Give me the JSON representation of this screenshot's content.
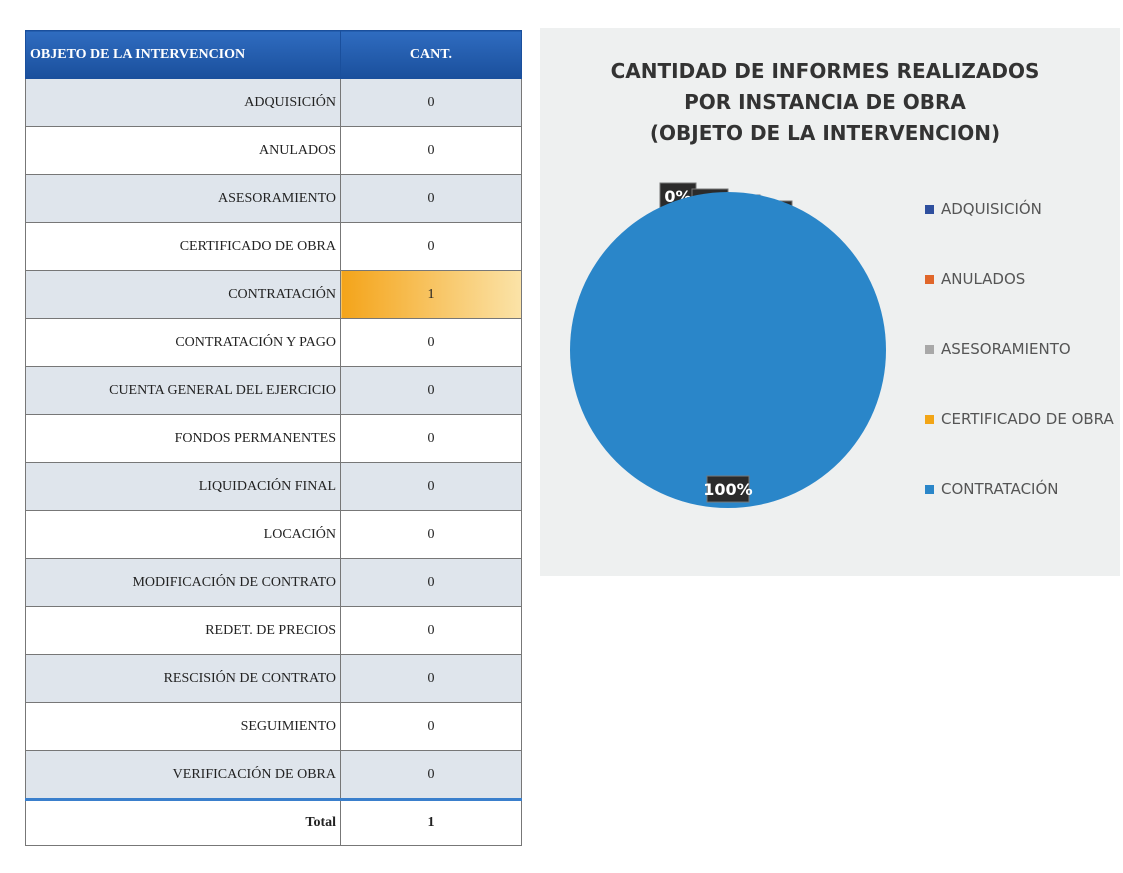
{
  "table": {
    "header": [
      "OBJETO DE LA INTERVENCION",
      "CANT."
    ],
    "rows": [
      [
        "ADQUISICIÓN",
        0
      ],
      [
        "ANULADOS",
        0
      ],
      [
        "ASESORAMIENTO",
        0
      ],
      [
        "CERTIFICADO DE OBRA",
        0
      ],
      [
        "CONTRATACIÓN",
        1
      ],
      [
        "CONTRATACIÓN Y PAGO",
        0
      ],
      [
        "CUENTA GENERAL DEL EJERCICIO",
        0
      ],
      [
        "FONDOS PERMANENTES",
        0
      ],
      [
        "LIQUIDACIÓN FINAL",
        0
      ],
      [
        "LOCACIÓN",
        0
      ],
      [
        "MODIFICACIÓN DE CONTRATO",
        0
      ],
      [
        "REDET. DE PRECIOS",
        0
      ],
      [
        "RESCISIÓN DE CONTRATO",
        0
      ],
      [
        "SEGUIMIENTO",
        0
      ],
      [
        "VERIFICACIÓN DE OBRA",
        0
      ]
    ],
    "total": [
      "Total",
      1
    ]
  },
  "chart_data": {
    "type": "pie",
    "title": [
      "CANTIDAD DE INFORMES REALIZADOS",
      "POR INSTANCIA DE OBRA",
      "(OBJETO DE LA INTERVENCION)"
    ],
    "categories": [
      "ADQUISICIÓN",
      "ANULADOS",
      "ASESORAMIENTO",
      "CERTIFICADO DE OBRA",
      "CONTRATACIÓN"
    ],
    "values": [
      0,
      0,
      0,
      0,
      100
    ],
    "value_labels": [
      "0%",
      "0%",
      "0%",
      "0%",
      "100%"
    ],
    "colors": [
      "#2e4f9e",
      "#e0662a",
      "#a8a8a8",
      "#f2a516",
      "#2a86c9"
    ],
    "legend": "right"
  }
}
